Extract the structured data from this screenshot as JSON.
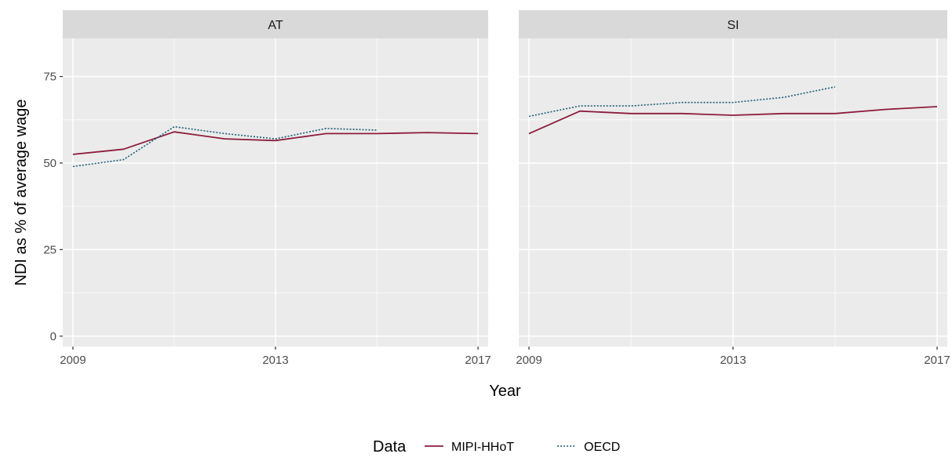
{
  "colors": {
    "panel_bg": "#EBEBEB",
    "strip_bg": "#D9D9D9",
    "grid": "#FFFFFF",
    "mipi": "#8C1D3C",
    "oecd": "#1E5D73"
  },
  "chart_data": {
    "type": "line",
    "ylabel": "NDI as % of average wage",
    "xlabel": "Year",
    "x_ticks": [
      2009,
      2013,
      2017
    ],
    "y_ticks": [
      0,
      25,
      50,
      75
    ],
    "xlim": [
      2008.8,
      2017.2
    ],
    "ylim": [
      -3,
      86
    ],
    "grid": true,
    "legend": {
      "title": "Data",
      "position": "bottom",
      "entries": [
        {
          "name": "MIPI-HHoT",
          "style": "solid"
        },
        {
          "name": "OECD",
          "style": "dotted"
        }
      ]
    },
    "panels": [
      {
        "label": "AT",
        "series": [
          {
            "name": "MIPI-HHoT",
            "x": [
              2009,
              2010,
              2011,
              2012,
              2013,
              2014,
              2015,
              2016,
              2017
            ],
            "y": [
              52.5,
              54.0,
              59.0,
              57.0,
              56.5,
              58.5,
              58.5,
              58.8,
              58.5
            ]
          },
          {
            "name": "OECD",
            "x": [
              2009,
              2010,
              2011,
              2012,
              2013,
              2014,
              2015
            ],
            "y": [
              49.0,
              51.0,
              60.5,
              58.5,
              57.0,
              60.0,
              59.5
            ]
          }
        ]
      },
      {
        "label": "SI",
        "series": [
          {
            "name": "MIPI-HHoT",
            "x": [
              2009,
              2010,
              2011,
              2012,
              2013,
              2014,
              2015,
              2016,
              2017
            ],
            "y": [
              58.5,
              65.0,
              64.3,
              64.3,
              63.8,
              64.3,
              64.3,
              65.5,
              66.3
            ]
          },
          {
            "name": "OECD",
            "x": [
              2009,
              2010,
              2011,
              2012,
              2013,
              2014,
              2015
            ],
            "y": [
              63.5,
              66.5,
              66.5,
              67.5,
              67.5,
              69.0,
              72.0
            ]
          }
        ]
      }
    ]
  }
}
